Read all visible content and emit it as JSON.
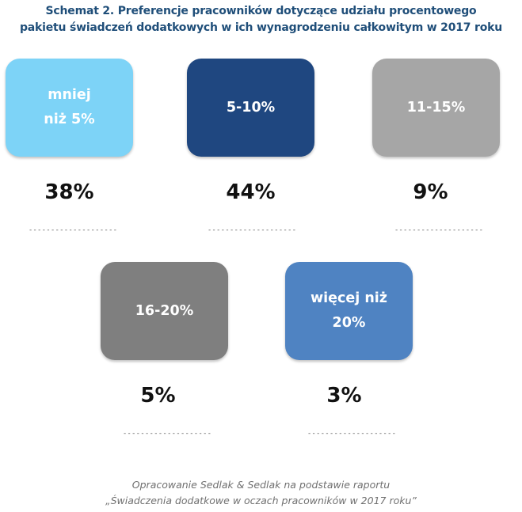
{
  "title": {
    "line1": "Schemat 2. Preferencje pracowników dotyczące udziału procentowego",
    "line2": "pakietu świadczeń dodatkowych w ich wynagrodzeniu całkowitym w 2017 roku"
  },
  "items": [
    {
      "label_line1": "mniej",
      "label_line2": "niż 5%",
      "value": "38%",
      "color": "#7dd3f7",
      "dashes": "--------------------"
    },
    {
      "label_line1": "5-10%",
      "label_line2": "",
      "value": "44%",
      "color": "#1f4780",
      "dashes": "--------------------"
    },
    {
      "label_line1": "11-15%",
      "label_line2": "",
      "value": "9%",
      "color": "#a6a6a6",
      "dashes": "--------------------"
    },
    {
      "label_line1": "16-20%",
      "label_line2": "",
      "value": "5%",
      "color": "#7f7f7f",
      "dashes": "--------------------"
    },
    {
      "label_line1": "więcej niż",
      "label_line2": "20%",
      "value": "3%",
      "color": "#4f83c2",
      "dashes": "--------------------"
    }
  ],
  "source": {
    "line1": "Opracowanie Sedlak & Sedlak na podstawie raportu",
    "line2": "„Świadczenia dodatkowe w oczach pracowników w 2017 roku”"
  }
}
